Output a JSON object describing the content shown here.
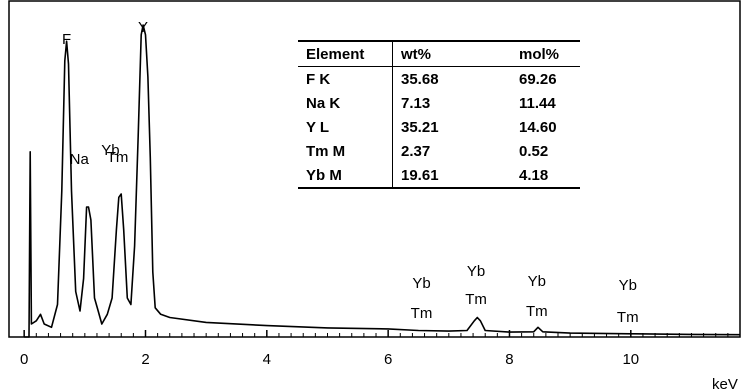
{
  "chart_data": {
    "type": "line",
    "xlabel": "keV",
    "ylabel": "",
    "xlim": [
      -0.25,
      11.8
    ],
    "ylim": [
      0,
      100
    ],
    "x_ticks": [
      0,
      2,
      4,
      6,
      8,
      10
    ],
    "grid": false,
    "series": [
      {
        "values": [
          [
            0.0,
            0
          ],
          [
            0.08,
            0
          ],
          [
            0.1,
            57
          ],
          [
            0.12,
            4
          ],
          [
            0.2,
            5
          ],
          [
            0.27,
            7
          ],
          [
            0.33,
            4
          ],
          [
            0.45,
            3
          ],
          [
            0.55,
            10
          ],
          [
            0.62,
            45
          ],
          [
            0.67,
            85
          ],
          [
            0.7,
            91
          ],
          [
            0.73,
            84
          ],
          [
            0.78,
            45
          ],
          [
            0.85,
            14
          ],
          [
            0.92,
            8
          ],
          [
            0.98,
            18
          ],
          [
            1.03,
            40
          ],
          [
            1.06,
            40
          ],
          [
            1.1,
            36
          ],
          [
            1.16,
            12
          ],
          [
            1.22,
            8
          ],
          [
            1.28,
            4
          ],
          [
            1.37,
            7
          ],
          [
            1.45,
            12
          ],
          [
            1.52,
            33
          ],
          [
            1.56,
            43
          ],
          [
            1.6,
            44
          ],
          [
            1.64,
            33
          ],
          [
            1.7,
            12
          ],
          [
            1.76,
            10
          ],
          [
            1.82,
            28
          ],
          [
            1.88,
            62
          ],
          [
            1.93,
            93
          ],
          [
            1.96,
            96
          ],
          [
            2.0,
            93
          ],
          [
            2.04,
            80
          ],
          [
            2.08,
            55
          ],
          [
            2.12,
            20
          ],
          [
            2.16,
            9
          ],
          [
            2.25,
            7
          ],
          [
            2.4,
            6
          ],
          [
            3.0,
            4.5
          ],
          [
            4.0,
            3.5
          ],
          [
            5.0,
            2.8
          ],
          [
            6.0,
            2.5
          ],
          [
            6.5,
            2
          ],
          [
            7.0,
            1.8
          ],
          [
            7.3,
            2
          ],
          [
            7.42,
            5
          ],
          [
            7.47,
            6
          ],
          [
            7.52,
            5
          ],
          [
            7.6,
            2
          ],
          [
            8.0,
            1.5
          ],
          [
            8.4,
            1.6
          ],
          [
            8.47,
            3
          ],
          [
            8.55,
            1.6
          ],
          [
            9.0,
            1.2
          ],
          [
            10.0,
            1
          ],
          [
            11.0,
            0.8
          ],
          [
            11.8,
            0.7
          ]
        ]
      }
    ],
    "peak_labels": [
      {
        "text": "F",
        "x": 0.7
      },
      {
        "text": "Y",
        "x": 1.96
      },
      {
        "text": "Na",
        "x": 1.04
      },
      {
        "text": "Yb",
        "x": 1.52
      },
      {
        "text": "Tm",
        "x": 1.54
      },
      {
        "text": "Yb",
        "x": 6.55
      },
      {
        "text": "Tm",
        "x": 6.55
      },
      {
        "text": "Yb",
        "x": 7.45
      },
      {
        "text": "Tm",
        "x": 7.45
      },
      {
        "text": "Yb",
        "x": 8.45
      },
      {
        "text": "Tm",
        "x": 8.45
      },
      {
        "text": "Yb",
        "x": 9.95
      },
      {
        "text": "Tm",
        "x": 9.95
      }
    ]
  },
  "table": {
    "headers": [
      "Element",
      "wt%",
      "mol%"
    ],
    "rows": [
      [
        "F K",
        "35.68",
        "69.26"
      ],
      [
        "Na K",
        "7.13",
        "11.44"
      ],
      [
        "Y L",
        "35.21",
        "14.60"
      ],
      [
        "Tm M",
        "2.37",
        "0.52"
      ],
      [
        "Yb M",
        "19.61",
        "4.18"
      ]
    ]
  }
}
